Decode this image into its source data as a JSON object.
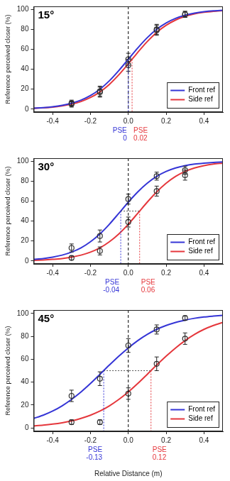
{
  "chart_data": [
    {
      "type": "line",
      "title": "15°",
      "y_label": "Reference perceived closer (%)",
      "xlim": [
        -0.5,
        0.5
      ],
      "xticks": [
        -0.4,
        -0.2,
        {
          "value": 0,
          "label": "0.0"
        },
        0.2,
        0.4
      ],
      "ylim": [
        -3,
        103
      ],
      "yticks": [
        0,
        20,
        40,
        60,
        80,
        100
      ],
      "grid": false,
      "legend": "lower right",
      "vline": 0,
      "pse_label": "PSE",
      "pse_level": 50,
      "x": [
        -0.3,
        -0.15,
        0,
        0.15,
        0.3
      ],
      "curve_x": [
        -0.5,
        -0.45,
        -0.4,
        -0.35,
        -0.3,
        -0.25,
        -0.2,
        -0.15,
        -0.1,
        -0.05,
        0,
        0.05,
        0.1,
        0.15,
        0.2,
        0.25,
        0.3,
        0.35,
        0.4,
        0.45,
        0.5
      ],
      "series": [
        {
          "name": "Front ref",
          "color": "#3535d6",
          "marker": "circle",
          "values": [
            5,
            18,
            50,
            80,
            95
          ],
          "errors": [
            3,
            5,
            6,
            5,
            3
          ],
          "curve": [
            1.0,
            1.5,
            2.4,
            3.8,
            5.9,
            9.0,
            13.6,
            20.0,
            28.4,
            38.7,
            50.0,
            61.3,
            71.6,
            80.0,
            86.4,
            91.0,
            94.1,
            96.2,
            97.6,
            98.5,
            99.0
          ],
          "pse": 0
        },
        {
          "name": "Side ref",
          "color": "#e5373c",
          "marker": "circle",
          "values": [
            6,
            17,
            44,
            79,
            95
          ],
          "errors": [
            3,
            5,
            6,
            5,
            3
          ],
          "curve": [
            0.8,
            1.3,
            2.0,
            3.2,
            4.9,
            7.6,
            11.6,
            17.2,
            24.8,
            34.4,
            45.4,
            56.9,
            67.7,
            76.9,
            84.0,
            89.3,
            93.0,
            95.5,
            97.1,
            98.1,
            98.8
          ],
          "pse": 0.02
        }
      ]
    },
    {
      "type": "line",
      "title": "30°",
      "y_label": "Reference perceived closer (%)",
      "xlim": [
        -0.5,
        0.5
      ],
      "xticks": [
        -0.4,
        -0.2,
        {
          "value": 0,
          "label": "0.0"
        },
        0.2,
        0.4
      ],
      "ylim": [
        -3,
        103
      ],
      "yticks": [
        0,
        20,
        40,
        60,
        80,
        100
      ],
      "grid": false,
      "legend": "lower right",
      "vline": 0,
      "pse_label": "PSE",
      "pse_level": 50,
      "x": [
        -0.3,
        -0.15,
        0,
        0.15,
        0.3
      ],
      "curve_x": [
        -0.5,
        -0.45,
        -0.4,
        -0.35,
        -0.3,
        -0.25,
        -0.2,
        -0.15,
        -0.1,
        -0.05,
        0,
        0.05,
        0.1,
        0.15,
        0.2,
        0.25,
        0.3,
        0.35,
        0.4,
        0.45,
        0.5
      ],
      "series": [
        {
          "name": "Front ref",
          "color": "#3535d6",
          "marker": "circle",
          "values": [
            13,
            25,
            62,
            85,
            91
          ],
          "errors": [
            4,
            6,
            5,
            4,
            4
          ],
          "curve": [
            1.6,
            2.4,
            3.8,
            5.8,
            8.8,
            13.1,
            19.2,
            27.1,
            36.8,
            47.8,
            58.9,
            69.2,
            77.9,
            84.7,
            89.7,
            93.2,
            95.5,
            97.1,
            98.1,
            98.8,
            99.2
          ],
          "pse": -0.04
        },
        {
          "name": "Side ref",
          "color": "#e5373c",
          "marker": "circle",
          "values": [
            3,
            10,
            39,
            70,
            86
          ],
          "errors": [
            2,
            4,
            5,
            5,
            5
          ],
          "curve": [
            0.6,
            1.0,
            1.6,
            2.4,
            3.8,
            5.8,
            8.8,
            13.1,
            19.2,
            27.1,
            36.8,
            47.8,
            58.9,
            69.2,
            77.9,
            84.7,
            89.7,
            93.2,
            95.5,
            97.1,
            98.1
          ],
          "pse": 0.06
        }
      ]
    },
    {
      "type": "line",
      "title": "45°",
      "x_label": "Relative Distance (m)",
      "y_label": "Reference perceived closer (%)",
      "xlim": [
        -0.5,
        0.5
      ],
      "xticks": [
        -0.4,
        -0.2,
        {
          "value": 0,
          "label": "0.0"
        },
        0.2,
        0.4
      ],
      "ylim": [
        -3,
        103
      ],
      "yticks": [
        0,
        20,
        40,
        60,
        80,
        100
      ],
      "grid": false,
      "legend": "lower right",
      "vline": 0,
      "pse_label": "PSE",
      "pse_level": 50,
      "x": [
        -0.3,
        -0.15,
        0,
        0.15,
        0.3
      ],
      "curve_x": [
        -0.5,
        -0.45,
        -0.4,
        -0.35,
        -0.3,
        -0.25,
        -0.2,
        -0.15,
        -0.1,
        -0.05,
        0,
        0.05,
        0.1,
        0.15,
        0.2,
        0.25,
        0.3,
        0.35,
        0.4,
        0.45,
        0.5
      ],
      "series": [
        {
          "name": "Front ref",
          "color": "#3535d6",
          "marker": "circle",
          "values": [
            28,
            43,
            72,
            86,
            96
          ],
          "errors": [
            5,
            6,
            6,
            4,
            2
          ],
          "curve": [
            8.3,
            11.1,
            14.7,
            19.3,
            24.9,
            31.4,
            38.8,
            46.8,
            54.9,
            62.7,
            69.9,
            76.3,
            81.7,
            86.1,
            89.5,
            92.2,
            94.2,
            95.8,
            96.9,
            97.7,
            98.4
          ],
          "pse": -0.13
        },
        {
          "name": "Side ref",
          "color": "#e5373c",
          "marker": "circle",
          "values": [
            5,
            5,
            30,
            56,
            78
          ],
          "errors": [
            2,
            2,
            5,
            6,
            5
          ],
          "curve": [
            1.7,
            2.4,
            3.3,
            4.5,
            6.1,
            8.3,
            11.1,
            14.7,
            19.3,
            24.9,
            31.4,
            38.8,
            46.8,
            54.9,
            62.7,
            69.9,
            76.3,
            81.7,
            86.1,
            89.5,
            92.2
          ],
          "pse": 0.12
        }
      ]
    }
  ]
}
